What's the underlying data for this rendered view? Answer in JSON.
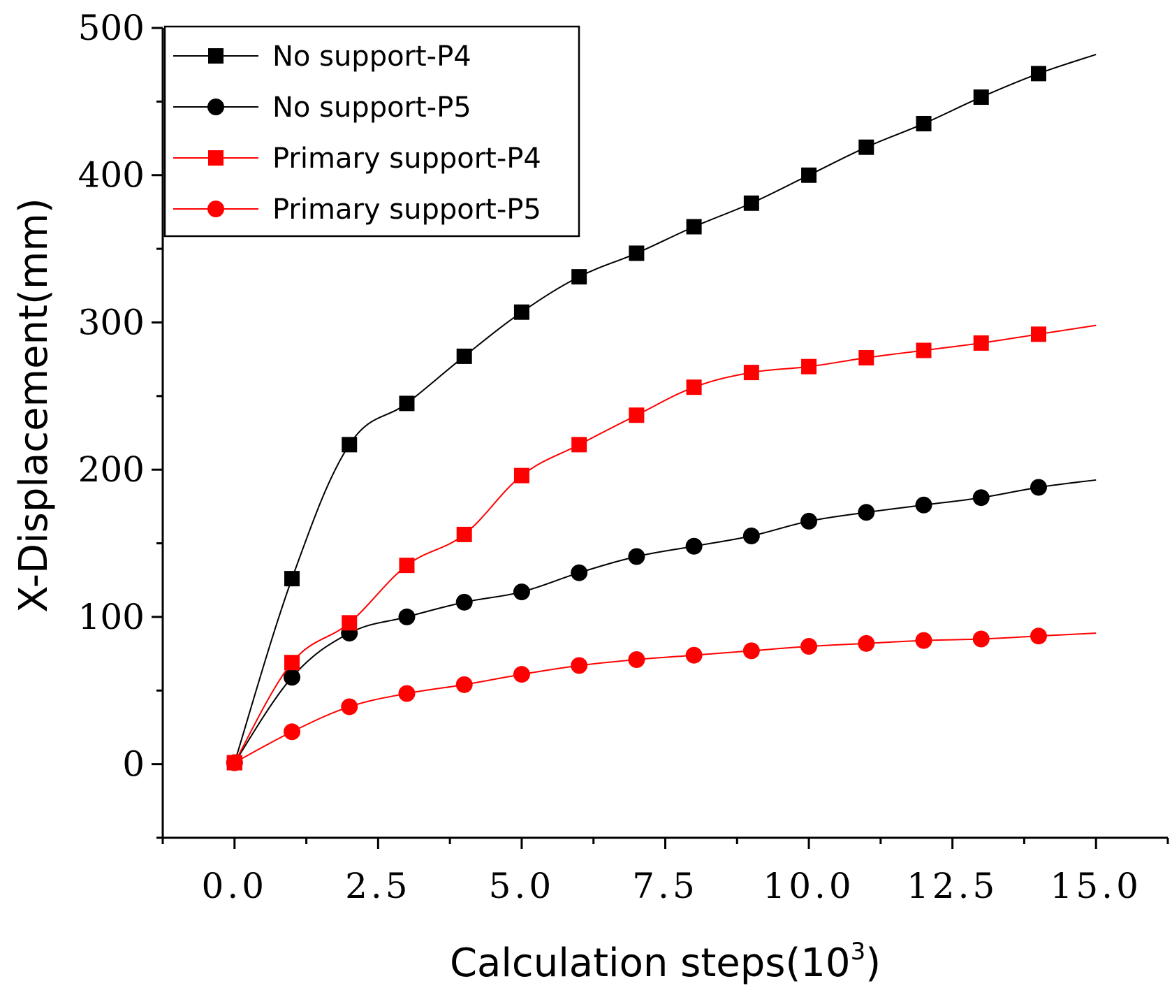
{
  "chart_data": {
    "type": "line",
    "xlabel": "Calculation steps(10",
    "xlabel_superscript": "3",
    "xlabel_suffix": ")",
    "ylabel": "X-Displacement(mm)",
    "xlim": [
      -1.25,
      16.25
    ],
    "ylim": [
      -50,
      500
    ],
    "x_ticks": [
      0.0,
      2.5,
      5.0,
      7.5,
      10.0,
      12.5,
      15.0
    ],
    "x_tick_labels": [
      "0.0",
      "2.5",
      "5.0",
      "7.5",
      "10.0",
      "12.5",
      "15.0"
    ],
    "y_ticks": [
      0,
      100,
      200,
      300,
      400,
      500
    ],
    "y_tick_labels": [
      "0",
      "100",
      "200",
      "300",
      "400",
      "500"
    ],
    "legend_position": "top-left",
    "series": [
      {
        "name": "No support-P4",
        "color": "#000000",
        "marker": "square",
        "x": [
          0,
          1,
          2,
          3,
          4,
          5,
          6,
          7,
          8,
          9,
          10,
          11,
          12,
          13,
          14
        ],
        "values": [
          1,
          126,
          217,
          245,
          277,
          307,
          331,
          347,
          365,
          381,
          400,
          419,
          435,
          453,
          469
        ],
        "line_end": [
          15,
          482
        ]
      },
      {
        "name": "No support-P5",
        "color": "#000000",
        "marker": "circle",
        "x": [
          0,
          1,
          2,
          3,
          4,
          5,
          6,
          7,
          8,
          9,
          10,
          11,
          12,
          13,
          14
        ],
        "values": [
          1,
          59,
          89,
          100,
          110,
          117,
          130,
          141,
          148,
          155,
          165,
          171,
          176,
          181,
          188
        ],
        "line_end": [
          15,
          193
        ]
      },
      {
        "name": "Primary support-P4",
        "color": "#ff0000",
        "marker": "square",
        "x": [
          0,
          1,
          2,
          3,
          4,
          5,
          6,
          7,
          8,
          9,
          10,
          11,
          12,
          13,
          14
        ],
        "values": [
          1,
          69,
          96,
          135,
          156,
          196,
          217,
          237,
          256,
          266,
          270,
          276,
          281,
          286,
          292
        ],
        "line_end": [
          15,
          298
        ]
      },
      {
        "name": "Primary support-P5",
        "color": "#ff0000",
        "marker": "circle",
        "x": [
          0,
          1,
          2,
          3,
          4,
          5,
          6,
          7,
          8,
          9,
          10,
          11,
          12,
          13,
          14
        ],
        "values": [
          1,
          22,
          39,
          48,
          54,
          61,
          67,
          71,
          74,
          77,
          80,
          82,
          84,
          85,
          87
        ],
        "line_end": [
          15,
          89
        ]
      }
    ]
  }
}
